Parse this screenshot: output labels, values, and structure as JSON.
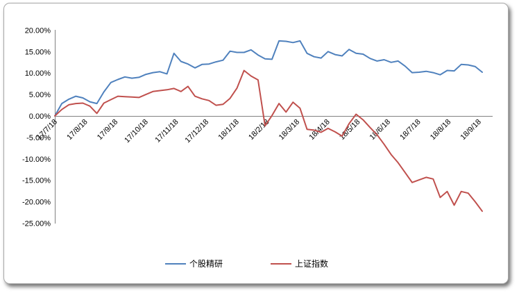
{
  "chart_data": {
    "type": "line",
    "title": "",
    "xlabel": "",
    "ylabel": "",
    "x_tick_labels": [
      "17/7/18",
      "17/8/18",
      "17/9/18",
      "17/10/18",
      "17/11/18",
      "17/12/18",
      "18/1/18",
      "18/2/18",
      "18/3/18",
      "18/4/18",
      "18/5/18",
      "18/6/18",
      "18/7/18",
      "18/8/18",
      "18/9/18"
    ],
    "y_tick_labels": [
      "20.00%",
      "15.00%",
      "10.00%",
      "5.00%",
      "0.00%",
      "-5.00%",
      "-10.00%",
      "-15.00%",
      "-20.00%",
      "-25.00%"
    ],
    "y_axis": {
      "min": -25,
      "max": 20,
      "step": 5,
      "unit": "%",
      "format": "0.00%"
    },
    "grid": "off",
    "legend_position": "bottom",
    "series": [
      {
        "name": "个股精研",
        "color": "#4F81BD",
        "values": [
          0.0,
          2.9,
          3.9,
          4.6,
          4.2,
          3.3,
          2.9,
          5.6,
          7.8,
          8.5,
          9.1,
          8.8,
          9.0,
          9.7,
          10.1,
          10.3,
          9.8,
          14.6,
          12.7,
          12.1,
          11.2,
          12.0,
          12.1,
          12.6,
          13.0,
          15.1,
          14.8,
          14.8,
          15.4,
          14.2,
          13.3,
          13.2,
          17.5,
          17.4,
          17.1,
          17.5,
          14.6,
          13.8,
          13.5,
          15.0,
          14.3,
          14.0,
          15.5,
          14.6,
          14.4,
          13.4,
          12.8,
          13.1,
          12.5,
          12.8,
          11.6,
          10.1,
          10.2,
          10.4,
          10.1,
          9.6,
          10.6,
          10.5,
          12.0,
          11.9,
          11.5,
          10.2
        ]
      },
      {
        "name": "上证指数",
        "color": "#C0504D",
        "values": [
          0.0,
          1.5,
          2.6,
          2.9,
          3.0,
          2.3,
          0.6,
          3.0,
          3.8,
          4.6,
          4.5,
          4.4,
          4.3,
          5.0,
          5.7,
          5.9,
          6.1,
          6.4,
          5.7,
          6.9,
          4.6,
          4.0,
          3.6,
          2.5,
          2.7,
          4.1,
          6.5,
          10.6,
          9.3,
          8.4,
          -2.3,
          0.1,
          2.9,
          0.9,
          3.2,
          1.8,
          -3.1,
          -3.3,
          -3.8,
          -2.9,
          -3.7,
          -4.7,
          -1.8,
          0.4,
          -0.9,
          -2.7,
          -4.4,
          -6.6,
          -9.0,
          -10.9,
          -13.2,
          -15.5,
          -14.9,
          -14.3,
          -14.7,
          -19.0,
          -17.6,
          -20.8,
          -17.6,
          -18.0,
          -20.0,
          -22.2
        ]
      }
    ]
  },
  "colors": {
    "series_1": "#4F81BD",
    "series_2": "#C0504D",
    "axis_line": "#808080",
    "tick_text": "#000000",
    "card_border": "#A8A8A8",
    "background": "#FFFFFF"
  }
}
